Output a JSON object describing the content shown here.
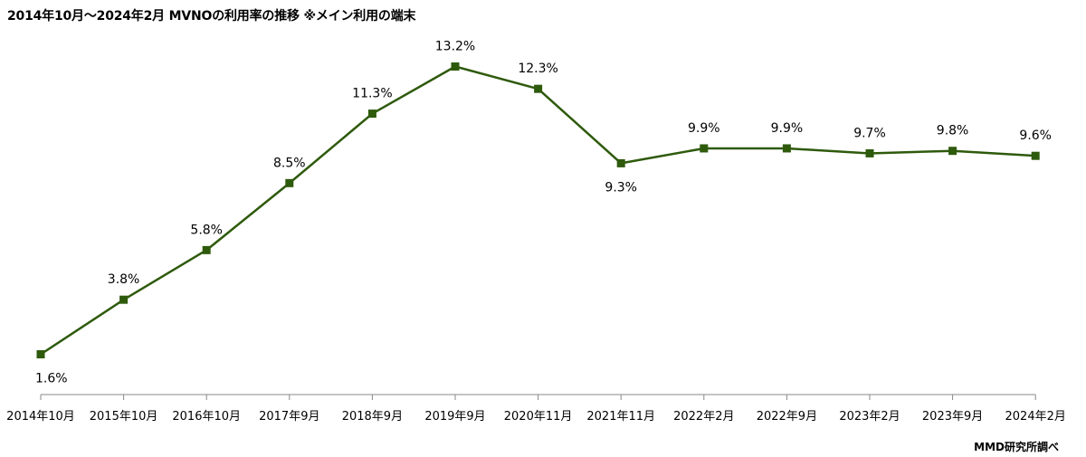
{
  "chart_data": {
    "type": "line",
    "title": "2014年10月～2024年2月  MVNOの利用率の推移  ※メイン利用の端末",
    "categories": [
      "2014年10月",
      "2015年10月",
      "2016年10月",
      "2017年9月",
      "2018年9月",
      "2019年9月",
      "2020年11月",
      "2021年11月",
      "2022年2月",
      "2022年9月",
      "2023年2月",
      "2023年9月",
      "2024年2月"
    ],
    "series": [
      {
        "values": [
          1.6,
          3.8,
          5.8,
          8.5,
          11.3,
          13.2,
          12.3,
          9.3,
          9.9,
          9.9,
          9.7,
          9.8,
          9.6
        ]
      }
    ],
    "data_labels": [
      "1.6%",
      "3.8%",
      "5.8%",
      "8.5%",
      "11.3%",
      "13.2%",
      "12.3%",
      "9.3%",
      "9.9%",
      "9.9%",
      "9.7%",
      "9.8%",
      "9.6%"
    ],
    "label_position": [
      "below",
      "above",
      "above",
      "above",
      "above",
      "above",
      "above",
      "below",
      "above",
      "above",
      "above",
      "above",
      "above"
    ],
    "ylim": [
      0,
      14
    ],
    "grid": false,
    "legend": "none",
    "line_color": "#2e5a0c",
    "marker": "square",
    "source": "MMD研究所調べ"
  }
}
